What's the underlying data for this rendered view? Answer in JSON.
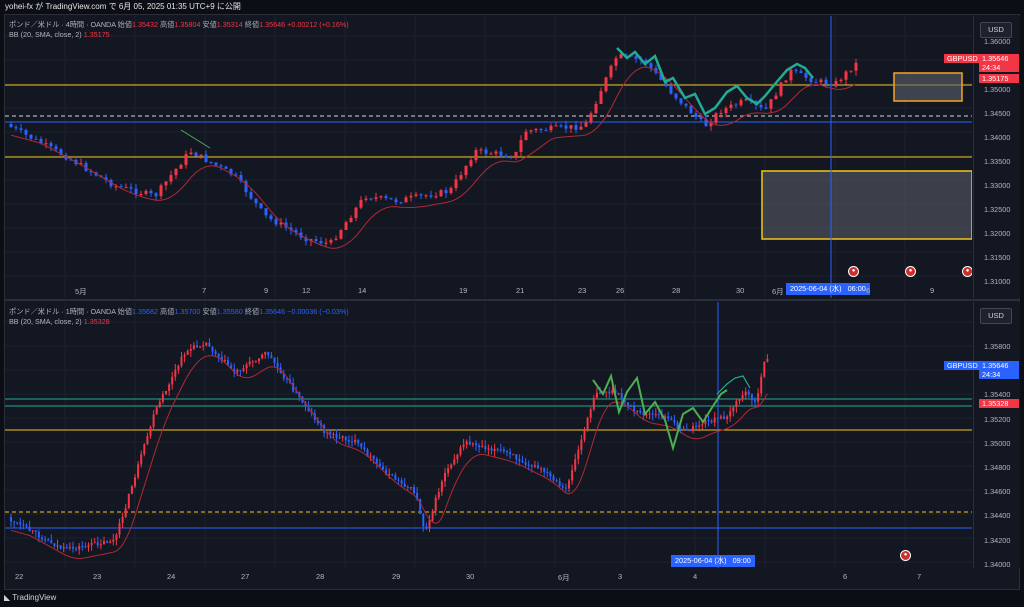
{
  "header": {
    "text": "yohei-fx が TradingView.com で 6月 05, 2025 01:35 UTC+9 に公開"
  },
  "pane1": {
    "symbol": "ポンド／米ドル · 4時間 · OANDA",
    "open_label": "始値",
    "open": "1.35432",
    "high_label": "高値",
    "high": "1.35804",
    "low_label": "安値",
    "low": "1.35314",
    "close_label": "終値",
    "close": "1.35646",
    "change": "+0.00212 (+0.16%)",
    "bb_label": "BB (20, SMA, close, 2)",
    "bb_value": "1.35175",
    "currency": "USD",
    "price_ticks": [
      "1.36000",
      "1.35500",
      "1.35000",
      "1.34500",
      "1.34000",
      "1.33500",
      "1.33000",
      "1.32500",
      "1.32000",
      "1.31500",
      "1.31000"
    ],
    "symbol_tag": "GBPUSD",
    "last_price": "1.35646",
    "countdown": "24:34",
    "bb_tag": "1.35175",
    "x_ticks": [
      "5月",
      "7",
      "9",
      "12",
      "14",
      "19",
      "21",
      "23",
      "26",
      "28",
      "30",
      "6月",
      "6",
      "9"
    ],
    "crosshair_date": "2025-06-04 (水)",
    "crosshair_time": "06:00"
  },
  "pane2": {
    "symbol": "ポンド／米ドル · 1時間 · OANDA",
    "open_label": "始値",
    "open": "1.35682",
    "high_label": "高値",
    "high": "1.35700",
    "low_label": "安値",
    "low": "1.35580",
    "close_label": "終値",
    "close": "1.35646",
    "change": "−0.00036 (−0.03%)",
    "bb_label": "BB (20, SMA, close, 2)",
    "bb_value": "1.35328",
    "currency": "USD",
    "price_ticks": [
      "1.35800",
      "1.35600",
      "1.35400",
      "1.35200",
      "1.35000",
      "1.34800",
      "1.34600",
      "1.34400",
      "1.34200",
      "1.34000"
    ],
    "symbol_tag": "GBPUSD",
    "last_price": "1.35646",
    "countdown": "24:34",
    "bb_tag": "1.35328",
    "x_ticks": [
      "22",
      "23",
      "24",
      "27",
      "28",
      "29",
      "30",
      "6月",
      "3",
      "4",
      "6",
      "7"
    ],
    "crosshair_date": "2025-06-04 (水)",
    "crosshair_time": "09:00"
  },
  "footer": {
    "brand": "TradingView"
  },
  "colors": {
    "bull": "#089981",
    "bear": "#2962ff",
    "bull_candle": "#f23645",
    "bb_line": "#b22833",
    "level_line": "#f5c518",
    "crosshair": "#2962ff"
  }
}
